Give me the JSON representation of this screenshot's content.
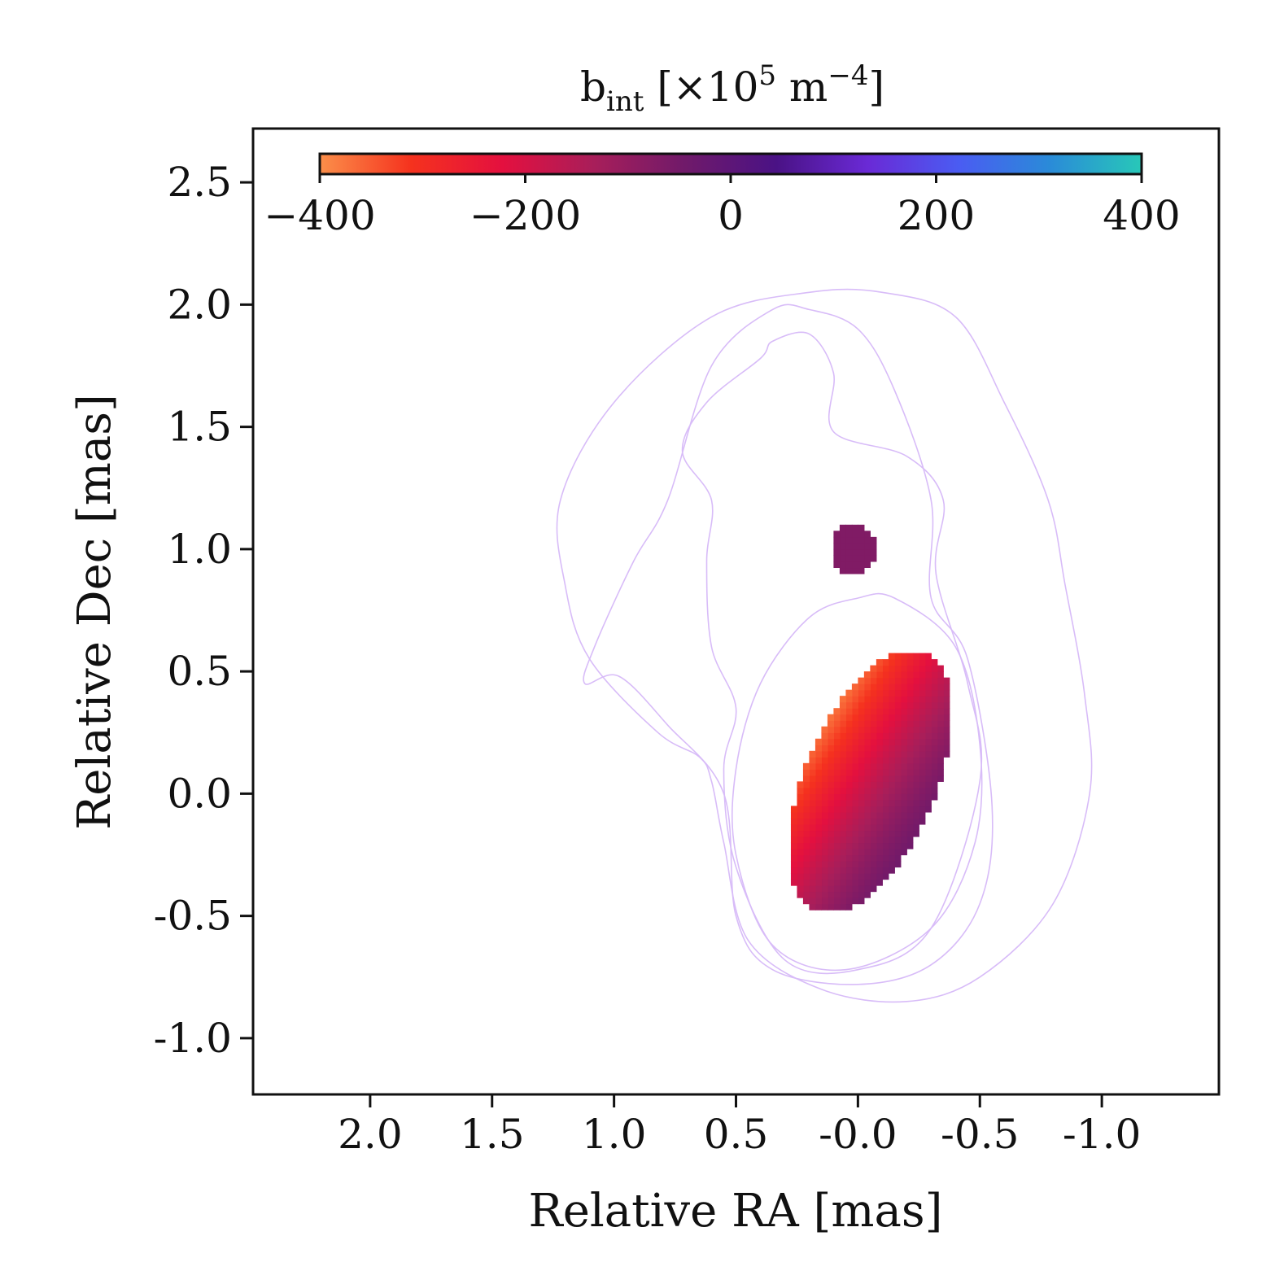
{
  "chart_data": {
    "type": "heatmap",
    "title": "",
    "xlabel": "Relative RA [mas]",
    "ylabel": "Relative Dec [mas]",
    "xlim": [
      2.48,
      -1.48
    ],
    "ylim": [
      -1.23,
      2.72
    ],
    "xticks": [
      {
        "value": 2.0,
        "label": "2.0"
      },
      {
        "value": 1.5,
        "label": "1.5"
      },
      {
        "value": 1.0,
        "label": "1.0"
      },
      {
        "value": 0.5,
        "label": "0.5"
      },
      {
        "value": 0.0,
        "label": "-0.0"
      },
      {
        "value": -0.5,
        "label": "-0.5"
      },
      {
        "value": -1.0,
        "label": "-1.0"
      }
    ],
    "yticks": [
      {
        "value": 2.5,
        "label": "2.5"
      },
      {
        "value": 2.0,
        "label": "2.0"
      },
      {
        "value": 1.5,
        "label": "1.5"
      },
      {
        "value": 1.0,
        "label": "1.0"
      },
      {
        "value": 0.5,
        "label": "0.5"
      },
      {
        "value": 0.0,
        "label": "0.0"
      },
      {
        "value": -0.5,
        "label": "-0.5"
      },
      {
        "value": -1.0,
        "label": "-1.0"
      }
    ],
    "colorbar": {
      "label_base": "b",
      "label_sub": "int",
      "label_rest": "[×10",
      "label_exp": "5",
      "label_unit": " m",
      "label_unit_exp": "−4",
      "label_close": "]",
      "range": [
        -400,
        400
      ],
      "ticks": [
        {
          "value": -400,
          "label": "−400"
        },
        {
          "value": -200,
          "label": "−200"
        },
        {
          "value": 0,
          "label": "0"
        },
        {
          "value": 200,
          "label": "200"
        },
        {
          "value": 400,
          "label": "400"
        }
      ],
      "location": "top-inside",
      "colors": [
        "#fb8f4a",
        "#f5321e",
        "#e4103f",
        "#a81e5a",
        "#701a6a",
        "#4a1285",
        "#6a2ad6",
        "#4a5cf2",
        "#2a8bd8",
        "#28c8b8"
      ]
    },
    "contour_color": "#d8bcf8",
    "contours": [
      {
        "name": "outer-contour",
        "points": [
          [
            -0.1,
            2.05
          ],
          [
            -0.4,
            1.95
          ],
          [
            -0.6,
            1.6
          ],
          [
            -0.78,
            1.2
          ],
          [
            -0.85,
            0.85
          ],
          [
            -0.93,
            0.4
          ],
          [
            -0.95,
            0.0
          ],
          [
            -0.8,
            -0.45
          ],
          [
            -0.5,
            -0.75
          ],
          [
            -0.2,
            -0.85
          ],
          [
            0.15,
            -0.8
          ],
          [
            0.45,
            -0.6
          ],
          [
            0.55,
            -0.2
          ],
          [
            0.6,
            0.05
          ],
          [
            0.65,
            0.15
          ],
          [
            0.82,
            0.25
          ],
          [
            1.1,
            0.55
          ],
          [
            1.2,
            0.85
          ],
          [
            1.22,
            1.2
          ],
          [
            1.0,
            1.6
          ],
          [
            0.6,
            1.95
          ],
          [
            0.2,
            2.05
          ]
        ]
      },
      {
        "name": "middle-contour",
        "points": [
          [
            0.35,
            1.98
          ],
          [
            0.6,
            1.75
          ],
          [
            0.78,
            1.2
          ],
          [
            0.92,
            0.95
          ],
          [
            1.08,
            0.6
          ],
          [
            1.12,
            0.45
          ],
          [
            0.98,
            0.48
          ],
          [
            0.78,
            0.28
          ],
          [
            0.55,
            0.0
          ],
          [
            0.5,
            -0.5
          ],
          [
            0.35,
            -0.72
          ],
          [
            0.0,
            -0.78
          ],
          [
            -0.3,
            -0.7
          ],
          [
            -0.5,
            -0.45
          ],
          [
            -0.55,
            -0.05
          ],
          [
            -0.45,
            0.55
          ],
          [
            -0.3,
            0.8
          ],
          [
            -0.3,
            1.2
          ],
          [
            -0.15,
            1.65
          ],
          [
            0.0,
            1.9
          ],
          [
            0.2,
            1.98
          ]
        ]
      },
      {
        "name": "inner-contour-a",
        "points": [
          [
            0.2,
            1.88
          ],
          [
            0.1,
            1.72
          ],
          [
            0.1,
            1.48
          ],
          [
            -0.2,
            1.38
          ],
          [
            -0.35,
            1.2
          ],
          [
            -0.32,
            0.9
          ],
          [
            -0.45,
            0.45
          ],
          [
            -0.5,
            0.05
          ],
          [
            -0.3,
            -0.55
          ],
          [
            0.0,
            -0.72
          ],
          [
            0.3,
            -0.68
          ],
          [
            0.5,
            -0.3
          ],
          [
            0.55,
            0.1
          ],
          [
            0.5,
            0.35
          ],
          [
            0.6,
            0.6
          ],
          [
            0.62,
            0.95
          ],
          [
            0.6,
            1.2
          ],
          [
            0.72,
            1.4
          ],
          [
            0.62,
            1.6
          ],
          [
            0.4,
            1.78
          ],
          [
            0.35,
            1.85
          ]
        ]
      },
      {
        "name": "inner-contour-b",
        "points": [
          [
            -0.15,
            0.8
          ],
          [
            -0.4,
            0.6
          ],
          [
            -0.5,
            0.2
          ],
          [
            -0.48,
            -0.2
          ],
          [
            -0.3,
            -0.55
          ],
          [
            0.05,
            -0.72
          ],
          [
            0.35,
            -0.62
          ],
          [
            0.5,
            -0.25
          ],
          [
            0.5,
            0.1
          ],
          [
            0.4,
            0.45
          ],
          [
            0.2,
            0.72
          ],
          [
            0.0,
            0.8
          ]
        ]
      }
    ],
    "field": {
      "name": "b_int",
      "grid_step_mas": 0.025,
      "main_blob": {
        "center": [
          -0.05,
          0.05
        ],
        "semi_axes": [
          0.27,
          0.57
        ],
        "rotation_deg": 23,
        "value_model": "minimum -370 on the left/upper-left rim, rising to about -40 on the lower-right",
        "value_min": -370,
        "value_max": -40
      },
      "small_blob": {
        "center": [
          0.02,
          1.0
        ],
        "radius": 0.09,
        "value": -70
      }
    }
  }
}
